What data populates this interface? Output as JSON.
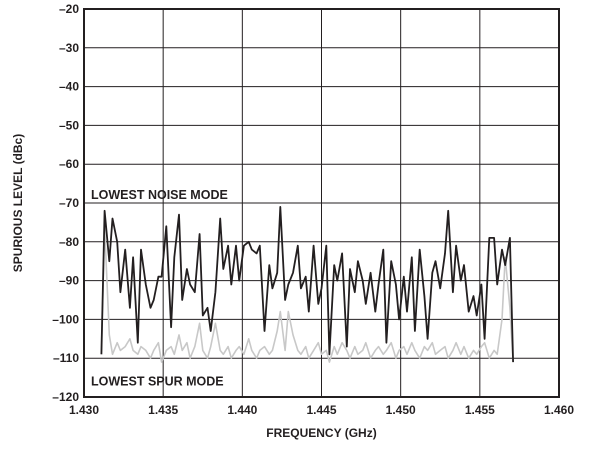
{
  "chart_data": {
    "type": "line",
    "title": "",
    "xlabel": "FREQUENCY (GHz)",
    "ylabel": "SPURIOUS LEVEL (dBc)",
    "xlim": [
      1.43,
      1.46
    ],
    "ylim": [
      -120,
      -20
    ],
    "grid": true,
    "legend": "none",
    "x_ticks": [
      1.43,
      1.435,
      1.44,
      1.445,
      1.45,
      1.455,
      1.46
    ],
    "x_tick_labels": [
      "1.430",
      "1.435",
      "1.440",
      "1.445",
      "1.450",
      "1.455",
      "1.460"
    ],
    "y_ticks": [
      -20,
      -30,
      -40,
      -50,
      -60,
      -70,
      -80,
      -90,
      -100,
      -110,
      -120
    ],
    "y_tick_labels": [
      "–20",
      "–30",
      "–40",
      "–50",
      "–60",
      "–70",
      "–80",
      "–90",
      "–100",
      "–110",
      "–120"
    ],
    "annotations": [
      {
        "text": "LOWEST NOISE MODE",
        "x": 1.4312,
        "y": -68
      },
      {
        "text": "LOWEST SPUR MODE",
        "x": 1.4312,
        "y": -116
      }
    ],
    "series": [
      {
        "color": "#231f20",
        "x": [
          1.4311,
          1.4313,
          1.4316,
          1.4318,
          1.4321,
          1.4323,
          1.4326,
          1.4329,
          1.4331,
          1.4334,
          1.4336,
          1.4339,
          1.4342,
          1.4344,
          1.4347,
          1.4349,
          1.4352,
          1.4355,
          1.4357,
          1.436,
          1.4362,
          1.4365,
          1.4367,
          1.437,
          1.4373,
          1.4375,
          1.4378,
          1.438,
          1.4383,
          1.4386,
          1.4388,
          1.4391,
          1.4393,
          1.4396,
          1.4398,
          1.4401,
          1.4404,
          1.4406,
          1.4409,
          1.4411,
          1.4414,
          1.4417,
          1.4419,
          1.4422,
          1.4424,
          1.4427,
          1.4429,
          1.4432,
          1.4435,
          1.4437,
          1.444,
          1.4442,
          1.4445,
          1.4448,
          1.445,
          1.4453,
          1.4455,
          1.4458,
          1.446,
          1.4463,
          1.4466,
          1.4468,
          1.4471,
          1.4473,
          1.4476,
          1.4478,
          1.4481,
          1.4484,
          1.4486,
          1.4489,
          1.4491,
          1.4494,
          1.4497,
          1.4499,
          1.4502,
          1.4504,
          1.4507,
          1.4509,
          1.4512,
          1.4515,
          1.4517,
          1.452,
          1.4522,
          1.4525,
          1.4528,
          1.453,
          1.4533,
          1.4535,
          1.4538,
          1.454,
          1.4543,
          1.4546,
          1.4548,
          1.4551,
          1.4553,
          1.4556,
          1.4559,
          1.4561,
          1.4564,
          1.4566,
          1.4569,
          1.4571
        ],
        "y": [
          -109,
          -72,
          -85,
          -74,
          -80,
          -93,
          -82,
          -97,
          -84,
          -106,
          -82,
          -91,
          -97,
          -95,
          -89,
          -89,
          -76,
          -102,
          -84,
          -73,
          -95,
          -87,
          -91,
          -93,
          -78,
          -99,
          -97,
          -103,
          -93,
          -74,
          -87,
          -81,
          -91,
          -81,
          -90,
          -81,
          -80,
          -82,
          -83,
          -81,
          -103,
          -86,
          -92,
          -88,
          -71,
          -95,
          -91,
          -88,
          -81,
          -92,
          -89,
          -98,
          -81,
          -96,
          -92,
          -81,
          -109,
          -86,
          -90,
          -83,
          -107,
          -87,
          -93,
          -85,
          -90,
          -96,
          -88,
          -98,
          -91,
          -82,
          -106,
          -85,
          -91,
          -100,
          -89,
          -98,
          -84,
          -103,
          -82,
          -94,
          -105,
          -88,
          -85,
          -92,
          -83,
          -72,
          -93,
          -81,
          -90,
          -86,
          -98,
          -94,
          -99,
          -91,
          -105,
          -79,
          -79,
          -91,
          -82,
          -86,
          -79,
          -111
        ]
      },
      {
        "color": "#c8c8c8",
        "x": [
          1.4311,
          1.4313,
          1.4316,
          1.4318,
          1.4321,
          1.4323,
          1.4326,
          1.4329,
          1.4331,
          1.4334,
          1.4336,
          1.4339,
          1.4342,
          1.4344,
          1.4347,
          1.4349,
          1.4352,
          1.4355,
          1.4357,
          1.436,
          1.4362,
          1.4365,
          1.4367,
          1.437,
          1.4373,
          1.4375,
          1.4378,
          1.438,
          1.4383,
          1.4386,
          1.4388,
          1.4391,
          1.4393,
          1.4396,
          1.4398,
          1.4401,
          1.4404,
          1.4406,
          1.4409,
          1.4411,
          1.4414,
          1.4417,
          1.4419,
          1.4422,
          1.4424,
          1.4427,
          1.4429,
          1.4432,
          1.4435,
          1.4437,
          1.444,
          1.4442,
          1.4445,
          1.4448,
          1.445,
          1.4453,
          1.4455,
          1.4458,
          1.446,
          1.4463,
          1.4466,
          1.4468,
          1.4471,
          1.4473,
          1.4476,
          1.4478,
          1.4481,
          1.4484,
          1.4486,
          1.4489,
          1.4491,
          1.4494,
          1.4497,
          1.4499,
          1.4502,
          1.4504,
          1.4507,
          1.4509,
          1.4512,
          1.4515,
          1.4517,
          1.452,
          1.4522,
          1.4525,
          1.4528,
          1.453,
          1.4533,
          1.4535,
          1.4538,
          1.454,
          1.4543,
          1.4546,
          1.4548,
          1.4551,
          1.4553,
          1.4556,
          1.4559,
          1.4561,
          1.4564,
          1.4566,
          1.4569,
          1.4571
        ],
        "y": [
          -108,
          -76,
          -104,
          -109,
          -106,
          -108,
          -107,
          -105,
          -108,
          -109,
          -107,
          -108,
          -110,
          -108,
          -106,
          -111,
          -108,
          -107,
          -109,
          -104,
          -108,
          -106,
          -110,
          -107,
          -101,
          -108,
          -110,
          -107,
          -101,
          -108,
          -109,
          -107,
          -110,
          -108,
          -107,
          -109,
          -105,
          -108,
          -110,
          -108,
          -107,
          -109,
          -108,
          -103,
          -98,
          -108,
          -98,
          -104,
          -108,
          -109,
          -107,
          -110,
          -108,
          -106,
          -109,
          -108,
          -111,
          -107,
          -109,
          -106,
          -108,
          -110,
          -107,
          -109,
          -108,
          -106,
          -110,
          -108,
          -107,
          -109,
          -108,
          -106,
          -110,
          -108,
          -107,
          -109,
          -106,
          -108,
          -110,
          -107,
          -108,
          -106,
          -109,
          -108,
          -107,
          -110,
          -108,
          -106,
          -109,
          -107,
          -110,
          -108,
          -109,
          -107,
          -106,
          -110,
          -108,
          -109,
          -100,
          -84,
          -97,
          -111
        ]
      }
    ]
  }
}
